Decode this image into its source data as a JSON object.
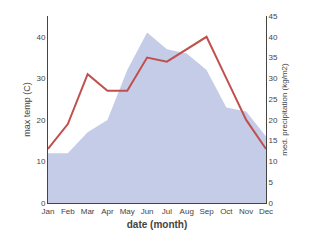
{
  "chart_data": {
    "type": "line",
    "categories": [
      "Jan",
      "Feb",
      "Mar",
      "Apr",
      "May",
      "Jun",
      "Jul",
      "Aug",
      "Sep",
      "Oct",
      "Nov",
      "Dec"
    ],
    "series": [
      {
        "type": "area",
        "color": "#c5cce8",
        "axis": "y2",
        "values": [
          12,
          12,
          17,
          20,
          32,
          41,
          37,
          36,
          32,
          23,
          22,
          16
        ]
      },
      {
        "type": "line",
        "color": "#c0504d",
        "axis": "y2",
        "values": [
          13,
          19,
          31,
          27,
          27,
          35,
          34,
          37,
          40,
          30,
          20,
          13
        ]
      }
    ],
    "xlabel": "date (month)",
    "ylabel": "max temp (C)",
    "y2label": "med. precipitation (kg/m2)",
    "ylim": [
      0,
      45
    ],
    "yticks": [
      0,
      10,
      20,
      30,
      40
    ],
    "y2lim": [
      0,
      45
    ],
    "y2ticks": [
      0,
      5,
      10,
      15,
      20,
      25,
      30,
      35,
      40,
      45
    ],
    "grid": false
  }
}
